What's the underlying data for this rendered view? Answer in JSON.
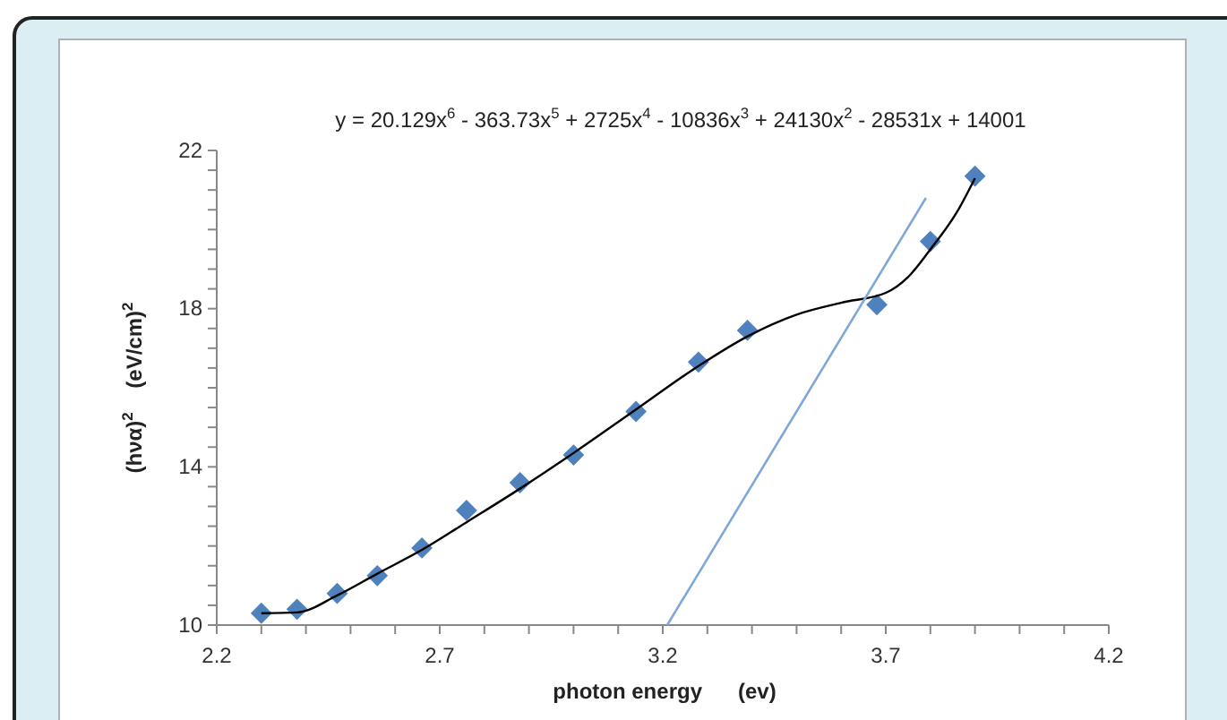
{
  "chart_data": {
    "type": "scatter",
    "xlabel": "photon energy      (ev)",
    "ylabel": "(hνα)$^{2}$    (eV/cm)$^{2}$",
    "annotations": [
      "y = 20.129x$^{6}$ - 363.73x$^{5}$ + 2725x$^{4}$ - 10836x$^{3}$ + 24130x$^{2}$ - 28531x + 14001"
    ],
    "xlim": [
      2.2,
      4.2
    ],
    "ylim": [
      10,
      22
    ],
    "xticks": [
      2.2,
      {
        "value": 2.3,
        "label": null
      },
      {
        "value": 2.4,
        "label": null
      },
      {
        "value": 2.5,
        "label": null
      },
      {
        "value": 2.6,
        "label": null
      },
      2.7,
      {
        "value": 2.8,
        "label": null
      },
      {
        "value": 2.9,
        "label": null
      },
      {
        "value": 3.0,
        "label": null
      },
      {
        "value": 3.1,
        "label": null
      },
      3.2,
      {
        "value": 3.3,
        "label": null
      },
      {
        "value": 3.4,
        "label": null
      },
      {
        "value": 3.5,
        "label": null
      },
      {
        "value": 3.6,
        "label": null
      },
      3.7,
      {
        "value": 3.8,
        "label": null
      },
      {
        "value": 3.9,
        "label": null
      },
      {
        "value": 4.0,
        "label": null
      },
      {
        "value": 4.1,
        "label": null
      },
      4.2
    ],
    "yticks": [
      10,
      {
        "value": 10.5,
        "label": null
      },
      {
        "value": 11,
        "label": null
      },
      {
        "value": 11.5,
        "label": null
      },
      {
        "value": 12,
        "label": null
      },
      {
        "value": 12.5,
        "label": null
      },
      {
        "value": 13,
        "label": null
      },
      {
        "value": 13.5,
        "label": null
      },
      14,
      {
        "value": 14.5,
        "label": null
      },
      {
        "value": 15,
        "label": null
      },
      {
        "value": 15.5,
        "label": null
      },
      {
        "value": 16,
        "label": null
      },
      {
        "value": 16.5,
        "label": null
      },
      {
        "value": 17,
        "label": null
      },
      {
        "value": 17.5,
        "label": null
      },
      18,
      {
        "value": 18.5,
        "label": null
      },
      {
        "value": 19,
        "label": null
      },
      {
        "value": 19.5,
        "label": null
      },
      {
        "value": 20,
        "label": null
      },
      {
        "value": 20.5,
        "label": null
      },
      {
        "value": 21,
        "label": null
      },
      {
        "value": 21.5,
        "label": null
      },
      22
    ],
    "grid": false,
    "series": [
      {
        "color": "#4f81bd",
        "marker": "diamond",
        "x": [
          2.3,
          2.38,
          2.47,
          2.56,
          2.66,
          2.76,
          2.88,
          3.0,
          3.14,
          3.28,
          3.39,
          3.68,
          3.8,
          3.9
        ],
        "values": [
          10.3,
          10.4,
          10.8,
          11.25,
          11.95,
          12.9,
          13.6,
          14.3,
          15.4,
          16.65,
          17.45,
          18.1,
          19.7,
          21.35
        ]
      },
      {
        "type": "line",
        "color": "#000000",
        "line_style": "solid",
        "marker": "none",
        "x": [
          2.3,
          2.38,
          2.47,
          2.56,
          2.66,
          2.76,
          2.88,
          3.0,
          3.14,
          3.28,
          3.39,
          3.5,
          3.6,
          3.7,
          3.75,
          3.8,
          3.86,
          3.9
        ],
        "values": [
          10.3,
          10.32,
          10.75,
          11.3,
          11.9,
          12.6,
          13.45,
          14.35,
          15.45,
          16.55,
          17.3,
          17.85,
          18.15,
          18.4,
          18.8,
          19.5,
          20.45,
          21.3
        ]
      },
      {
        "type": "line",
        "color": "#7fa7d8",
        "line_style": "solid",
        "marker": "none",
        "x": [
          3.21,
          3.79
        ],
        "values": [
          10,
          20.8
        ]
      }
    ]
  }
}
